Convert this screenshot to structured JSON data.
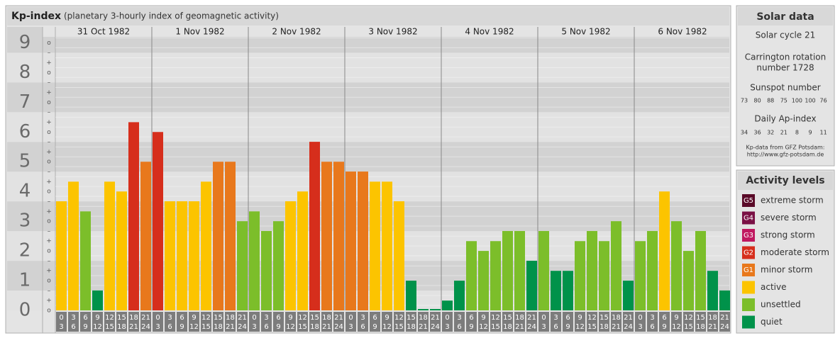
{
  "chart_data": {
    "type": "bar",
    "title": "Kp-index",
    "subtitle": "(planetary 3-hourly index of geomagnetic activity)",
    "days": [
      "31 Oct 1982",
      "1 Nov 1982",
      "2 Nov 1982",
      "3 Nov 1982",
      "4 Nov 1982",
      "5 Nov 1982",
      "6 Nov 1982"
    ],
    "hour_labels": [
      [
        "0",
        "3"
      ],
      [
        "3",
        "6"
      ],
      [
        "6",
        "9"
      ],
      [
        "9",
        "12"
      ],
      [
        "12",
        "15"
      ],
      [
        "15",
        "18"
      ],
      [
        "18",
        "21"
      ],
      [
        "21",
        "24"
      ]
    ],
    "values": [
      3.67,
      4.33,
      3.33,
      0.67,
      4.33,
      4.0,
      6.33,
      5.0,
      6.0,
      3.67,
      3.67,
      3.67,
      4.33,
      5.0,
      5.0,
      3.0,
      3.33,
      2.67,
      3.0,
      3.67,
      4.0,
      5.67,
      5.0,
      5.0,
      4.67,
      4.67,
      4.33,
      4.33,
      3.67,
      1.0,
      0,
      0,
      0.33,
      1.0,
      2.33,
      2.0,
      2.33,
      2.67,
      2.67,
      1.67,
      2.67,
      1.33,
      1.33,
      2.33,
      2.67,
      2.33,
      3.0,
      1.0,
      2.33,
      2.67,
      4.0,
      3.0,
      2.0,
      2.67,
      1.33,
      0.67
    ],
    "colors": [
      "#fcc400",
      "#fcc400",
      "#7cbe2a",
      "#00924a",
      "#fcc400",
      "#fcc400",
      "#d62e1c",
      "#e8781c",
      "#d62e1c",
      "#fcc400",
      "#fcc400",
      "#fcc400",
      "#fcc400",
      "#e8781c",
      "#e8781c",
      "#7cbe2a",
      "#7cbe2a",
      "#7cbe2a",
      "#7cbe2a",
      "#fcc400",
      "#fcc400",
      "#d62e1c",
      "#e8781c",
      "#e8781c",
      "#e8781c",
      "#e8781c",
      "#fcc400",
      "#fcc400",
      "#fcc400",
      "#00924a",
      "#00924a",
      "#00924a",
      "#00924a",
      "#00924a",
      "#7cbe2a",
      "#7cbe2a",
      "#7cbe2a",
      "#7cbe2a",
      "#7cbe2a",
      "#00924a",
      "#7cbe2a",
      "#00924a",
      "#00924a",
      "#7cbe2a",
      "#7cbe2a",
      "#7cbe2a",
      "#7cbe2a",
      "#00924a",
      "#7cbe2a",
      "#7cbe2a",
      "#fcc400",
      "#7cbe2a",
      "#7cbe2a",
      "#7cbe2a",
      "#00924a",
      "#00924a"
    ],
    "ylim": [
      0,
      9.2
    ],
    "yticks": [
      0,
      1,
      2,
      3,
      4,
      5,
      6,
      7,
      8,
      9
    ],
    "minor_ticks": [
      {
        "value": 0,
        "label": "o"
      },
      {
        "value": 0.33,
        "label": "+"
      },
      {
        "value": 0.67,
        "label": "–"
      },
      {
        "value": 1,
        "label": "o"
      },
      {
        "value": 1.33,
        "label": "+"
      },
      {
        "value": 1.67,
        "label": "–"
      },
      {
        "value": 2,
        "label": "o"
      },
      {
        "value": 2.33,
        "label": "+"
      },
      {
        "value": 2.67,
        "label": "–"
      },
      {
        "value": 3,
        "label": "o"
      },
      {
        "value": 3.33,
        "label": "+"
      },
      {
        "value": 3.67,
        "label": "–"
      },
      {
        "value": 4,
        "label": "o"
      },
      {
        "value": 4.33,
        "label": "+"
      },
      {
        "value": 4.67,
        "label": "–"
      },
      {
        "value": 5,
        "label": "o"
      },
      {
        "value": 5.33,
        "label": "+"
      },
      {
        "value": 5.67,
        "label": "–"
      },
      {
        "value": 6,
        "label": "o"
      },
      {
        "value": 6.33,
        "label": "+"
      },
      {
        "value": 6.67,
        "label": "–"
      },
      {
        "value": 7,
        "label": "o"
      },
      {
        "value": 7.33,
        "label": "+"
      },
      {
        "value": 7.67,
        "label": "–"
      },
      {
        "value": 8,
        "label": "o"
      },
      {
        "value": 8.33,
        "label": "+"
      },
      {
        "value": 8.67,
        "label": "–"
      },
      {
        "value": 9,
        "label": "o"
      }
    ]
  },
  "solar_data": {
    "title": "Solar data",
    "cycle": "Solar cycle 21",
    "carrington": [
      "Carrington rotation",
      "number 1728"
    ],
    "sunspot_title": "Sunspot number",
    "sunspot": [
      73,
      80,
      88,
      75,
      100,
      100,
      76
    ],
    "ap_title": "Daily Ap-index",
    "ap": [
      34,
      36,
      32,
      21,
      8,
      9,
      11
    ],
    "source": [
      "Kp-data from GFZ Potsdam:",
      "http://www.gfz-potsdam.de"
    ]
  },
  "activity_levels": {
    "title": "Activity levels",
    "items": [
      {
        "code": "G5",
        "label": "extreme storm",
        "color": "#5a0a28"
      },
      {
        "code": "G4",
        "label": "severe storm",
        "color": "#7a1045"
      },
      {
        "code": "G3",
        "label": "strong storm",
        "color": "#c01860"
      },
      {
        "code": "G2",
        "label": "moderate storm",
        "color": "#d62e1c"
      },
      {
        "code": "G1",
        "label": "minor storm",
        "color": "#e8781c"
      },
      {
        "code": null,
        "label": "active",
        "color": "#fcc400"
      },
      {
        "code": null,
        "label": "unsettled",
        "color": "#7cbe2a"
      },
      {
        "code": null,
        "label": "quiet",
        "color": "#00924a"
      }
    ]
  }
}
